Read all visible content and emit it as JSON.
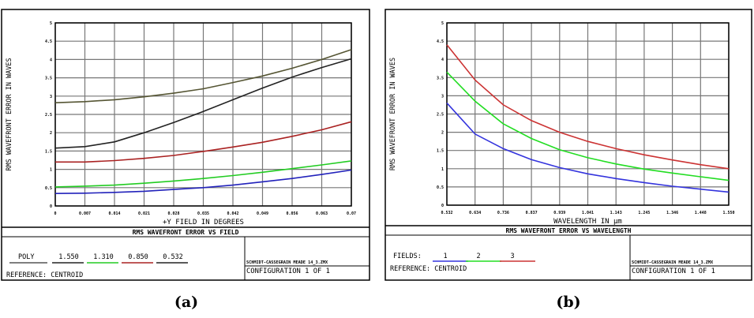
{
  "chart_data": [
    {
      "id": "a",
      "type": "line",
      "caption": "(a)",
      "title": "RMS WAVEFRONT ERROR VS FIELD",
      "xlabel": "+Y FIELD IN DEGREES",
      "ylabel": "RMS WAVEFRONT ERROR IN WAVES",
      "xlim": [
        0,
        0.07
      ],
      "ylim": [
        0,
        5
      ],
      "x_ticks": [
        "0",
        "0.007",
        "0.014",
        "0.021",
        "0.028",
        "0.035",
        "0.042",
        "0.049",
        "0.056",
        "0.063",
        "0.07"
      ],
      "y_ticks": [
        "0",
        "0.5",
        "1",
        "1.5",
        "2",
        "2.5",
        "3",
        "3.5",
        "4",
        "4.5",
        "5"
      ],
      "grid": true,
      "legend_prefix": "POLY",
      "reference": "REFERENCE: CENTROID",
      "lens_name": "SCHMIDT-CASSEGRAIN MEADE 14_3.ZMX",
      "configuration": "CONFIGURATION 1 OF 1",
      "x": [
        0,
        0.007,
        0.014,
        0.021,
        0.028,
        0.035,
        0.042,
        0.049,
        0.056,
        0.063,
        0.07
      ],
      "series": [
        {
          "name": "1.550",
          "color": "#555533",
          "values": [
            2.82,
            2.85,
            2.9,
            2.98,
            3.08,
            3.2,
            3.37,
            3.55,
            3.76,
            4.0,
            4.27
          ]
        },
        {
          "name": "1.310",
          "color": "#22cc22",
          "values": [
            0.52,
            0.54,
            0.57,
            0.62,
            0.68,
            0.75,
            0.83,
            0.92,
            1.02,
            1.12,
            1.23
          ]
        },
        {
          "name": "0.850",
          "color": "#aa2222",
          "values": [
            1.2,
            1.2,
            1.24,
            1.3,
            1.38,
            1.49,
            1.61,
            1.74,
            1.9,
            2.08,
            2.3
          ]
        },
        {
          "name": "0.532",
          "color": "#222222",
          "values": [
            1.58,
            1.62,
            1.75,
            2.0,
            2.28,
            2.58,
            2.9,
            3.22,
            3.52,
            3.78,
            4.02
          ]
        },
        {
          "name": "",
          "color": "#2222bb",
          "values": [
            0.34,
            0.35,
            0.37,
            0.4,
            0.45,
            0.5,
            0.57,
            0.66,
            0.75,
            0.86,
            0.98
          ]
        }
      ],
      "legend_colors": [
        "#222222",
        "#22cc22",
        "#aa2222",
        "#222222"
      ]
    },
    {
      "id": "b",
      "type": "line",
      "caption": "(b)",
      "title": "RMS WAVEFRONT ERROR VS WAVELENGTH",
      "xlabel": "WAVELENGTH IN µm",
      "ylabel": "RMS WAVEFRONT ERROR IN WAVES",
      "xlim": [
        0.532,
        1.55
      ],
      "ylim": [
        0,
        5
      ],
      "x_ticks": [
        "0.532",
        "0.634",
        "0.736",
        "0.837",
        "0.939",
        "1.041",
        "1.143",
        "1.245",
        "1.346",
        "1.448",
        "1.550"
      ],
      "y_ticks": [
        "0",
        "0.5",
        "1",
        "1.5",
        "2",
        "2.5",
        "3",
        "3.5",
        "4",
        "4.5",
        "5"
      ],
      "grid": true,
      "legend_prefix": "FIELDS:",
      "reference": "REFERENCE: CENTROID",
      "lens_name": "SCHMIDT-CASSEGRAIN MEADE 14_3.ZMX",
      "configuration": "CONFIGURATION 1 OF 1",
      "x": [
        0.532,
        0.634,
        0.736,
        0.837,
        0.939,
        1.041,
        1.143,
        1.245,
        1.346,
        1.448,
        1.55
      ],
      "series": [
        {
          "name": "1",
          "color": "#3333dd",
          "values": [
            2.8,
            1.95,
            1.55,
            1.25,
            1.03,
            0.86,
            0.73,
            0.62,
            0.52,
            0.44,
            0.36
          ]
        },
        {
          "name": "2",
          "color": "#22dd22",
          "values": [
            3.65,
            2.85,
            2.23,
            1.83,
            1.52,
            1.3,
            1.13,
            0.99,
            0.88,
            0.78,
            0.68
          ]
        },
        {
          "name": "3",
          "color": "#cc3333",
          "values": [
            4.4,
            3.43,
            2.75,
            2.32,
            2.0,
            1.75,
            1.55,
            1.38,
            1.24,
            1.11,
            1.0
          ]
        }
      ]
    }
  ]
}
